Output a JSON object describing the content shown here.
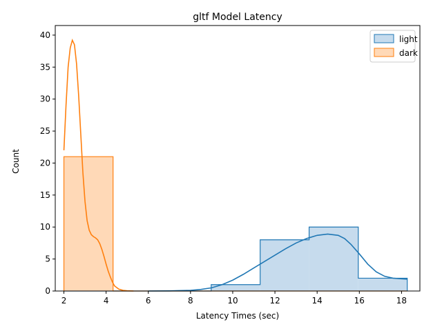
{
  "chart_data": {
    "type": "histogram",
    "title": "gltf Model Latency",
    "xlabel": "Latency Times (sec)",
    "ylabel": "Count",
    "xlim": [
      1.59,
      18.87
    ],
    "ylim": [
      0,
      41.5
    ],
    "xticks": [
      2,
      4,
      6,
      8,
      10,
      12,
      14,
      16,
      18
    ],
    "yticks": [
      0,
      5,
      10,
      15,
      20,
      25,
      30,
      35,
      40
    ],
    "legend_position": "top-right",
    "grid": false,
    "bin_edges": [
      2.0,
      4.33,
      6.65,
      8.98,
      11.3,
      13.62,
      15.95,
      18.27
    ],
    "series": [
      {
        "name": "light",
        "color": "#1f77b4",
        "fill": "#c6dbed",
        "counts": [
          0,
          0,
          0,
          1,
          8,
          10,
          2
        ],
        "kde": [
          [
            6.0,
            0
          ],
          [
            7.0,
            0.02
          ],
          [
            8.0,
            0.1
          ],
          [
            8.5,
            0.25
          ],
          [
            9.0,
            0.5
          ],
          [
            9.5,
            1.0
          ],
          [
            10.0,
            1.7
          ],
          [
            10.5,
            2.6
          ],
          [
            11.0,
            3.6
          ],
          [
            11.5,
            4.6
          ],
          [
            12.0,
            5.6
          ],
          [
            12.5,
            6.6
          ],
          [
            13.0,
            7.5
          ],
          [
            13.5,
            8.2
          ],
          [
            14.0,
            8.7
          ],
          [
            14.5,
            8.9
          ],
          [
            15.0,
            8.7
          ],
          [
            15.3,
            8.2
          ],
          [
            15.6,
            7.3
          ],
          [
            16.0,
            5.8
          ],
          [
            16.4,
            4.2
          ],
          [
            16.8,
            3.0
          ],
          [
            17.2,
            2.3
          ],
          [
            17.6,
            2.0
          ],
          [
            18.0,
            1.9
          ],
          [
            18.27,
            1.85
          ]
        ]
      },
      {
        "name": "dark",
        "color": "#ff7f0e",
        "fill": "#ffd9b7",
        "counts": [
          21,
          0,
          0,
          0,
          0,
          0,
          0
        ],
        "kde": [
          [
            2.0,
            22.0
          ],
          [
            2.1,
            29.0
          ],
          [
            2.2,
            35.0
          ],
          [
            2.3,
            38.0
          ],
          [
            2.4,
            39.2
          ],
          [
            2.5,
            38.5
          ],
          [
            2.6,
            35.5
          ],
          [
            2.7,
            30.5
          ],
          [
            2.8,
            24.5
          ],
          [
            2.9,
            18.5
          ],
          [
            3.0,
            14.0
          ],
          [
            3.1,
            11.0
          ],
          [
            3.2,
            9.5
          ],
          [
            3.3,
            8.8
          ],
          [
            3.4,
            8.5
          ],
          [
            3.5,
            8.3
          ],
          [
            3.6,
            8.0
          ],
          [
            3.7,
            7.4
          ],
          [
            3.8,
            6.5
          ],
          [
            3.9,
            5.4
          ],
          [
            4.0,
            4.2
          ],
          [
            4.1,
            3.1
          ],
          [
            4.2,
            2.2
          ],
          [
            4.3,
            1.4
          ],
          [
            4.4,
            0.8
          ],
          [
            4.6,
            0.3
          ],
          [
            4.8,
            0.1
          ],
          [
            5.0,
            0.03
          ],
          [
            5.3,
            0.0
          ]
        ]
      }
    ]
  }
}
